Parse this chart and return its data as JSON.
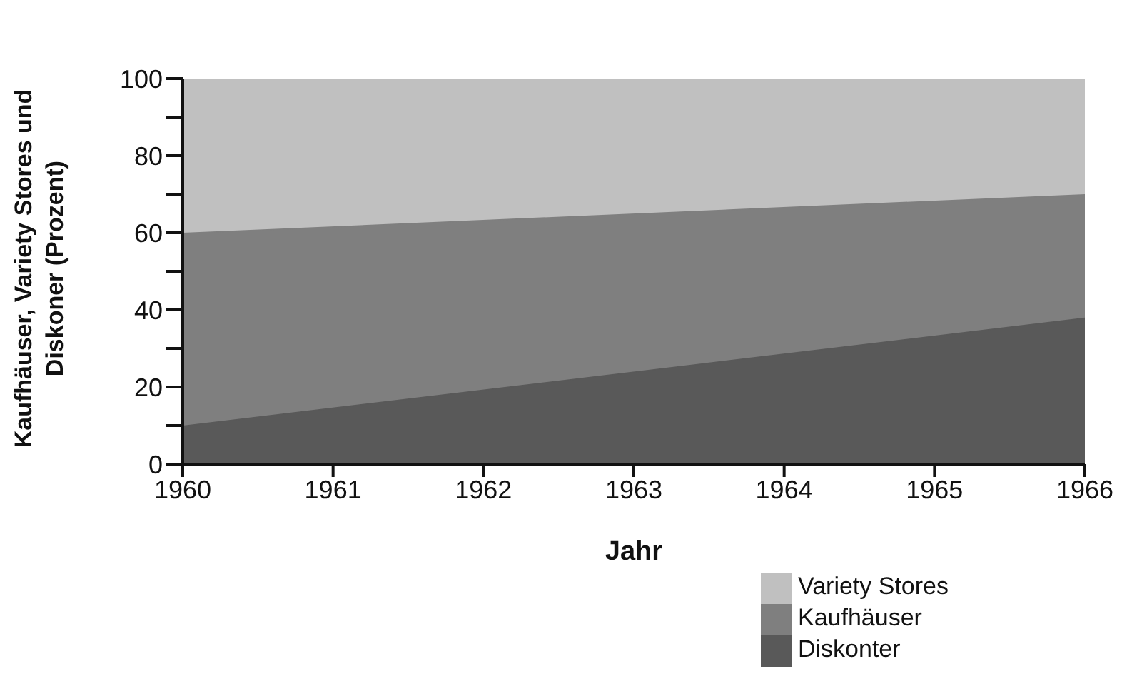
{
  "chart_data": {
    "type": "area",
    "xlabel": "Jahr",
    "ylabel": "Kaufhäuser, Variety Stores und Diskoner (Prozent)",
    "x": [
      1960,
      1966
    ],
    "stacked": true,
    "series": [
      {
        "name": "Diskonter",
        "color": "#595959",
        "values": [
          10,
          38
        ]
      },
      {
        "name": "Kaufhäuser",
        "color": "#7f7f7f",
        "values": [
          50,
          32
        ]
      },
      {
        "name": "Variety Stores",
        "color": "#c0c0c0",
        "values": [
          40,
          30
        ]
      }
    ],
    "xlim": [
      1960,
      1966
    ],
    "xticks": [
      1960,
      1961,
      1962,
      1963,
      1964,
      1965,
      1966
    ],
    "ylim": [
      0,
      100
    ],
    "yticks": [
      0,
      {
        "value": 10,
        "label": null
      },
      20,
      {
        "value": 30,
        "label": null
      },
      40,
      {
        "value": 50,
        "label": null
      },
      60,
      {
        "value": 70,
        "label": null
      },
      80,
      {
        "value": 90,
        "label": null
      },
      100
    ],
    "grid": false,
    "legend": "bottom right"
  }
}
